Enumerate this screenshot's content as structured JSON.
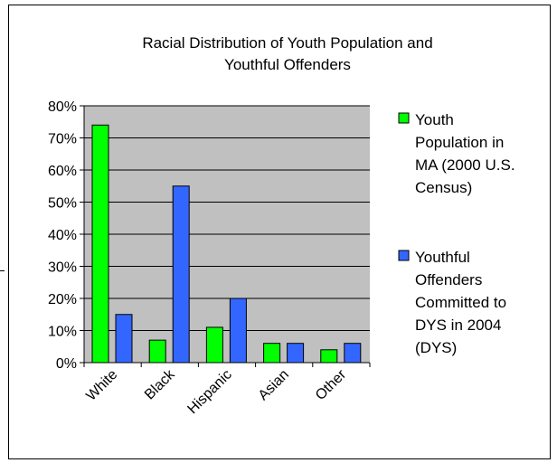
{
  "chart_data": {
    "type": "bar",
    "title": "Racial Distribution of Youth Population and Youthful Offenders",
    "title_lines": [
      "Racial Distribution of Youth Population and",
      "Youthful Offenders"
    ],
    "categories": [
      "White",
      "Black",
      "Hispanic",
      "Asian",
      "Other"
    ],
    "series": [
      {
        "name": "Youth Population in MA (2000 U.S. Census)",
        "legend_lines": [
          "Youth",
          "Population in",
          "MA (2000 U.S.",
          "Census)"
        ],
        "color": "#00ff00",
        "values": [
          74,
          7,
          11,
          6,
          4
        ]
      },
      {
        "name": "Youthful Offenders Committed to DYS in 2004 (DYS)",
        "legend_lines": [
          "Youthful",
          "Offenders",
          "Committed to",
          "DYS in 2004",
          "(DYS)"
        ],
        "color": "#3366ff",
        "values": [
          15,
          55,
          20,
          6,
          6
        ]
      }
    ],
    "xlabel": "",
    "ylabel": "",
    "ylim": [
      0,
      80
    ],
    "y_ticks": [
      0,
      10,
      20,
      30,
      40,
      50,
      60,
      70,
      80
    ],
    "y_tick_labels": [
      "0%",
      "10%",
      "20%",
      "30%",
      "40%",
      "50%",
      "60%",
      "70%",
      "80%"
    ],
    "grid": true,
    "plot_background": "#c0c0c0",
    "legend_position": "right"
  }
}
